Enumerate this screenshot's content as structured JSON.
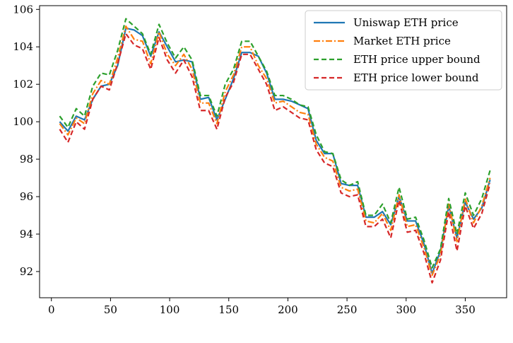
{
  "chart_data": {
    "type": "line",
    "title": "",
    "xlabel": "",
    "ylabel": "",
    "xlim": [
      -10,
      385
    ],
    "ylim": [
      90.6,
      106.2
    ],
    "xticks": [
      0,
      50,
      100,
      150,
      200,
      250,
      300,
      350
    ],
    "yticks": [
      92,
      94,
      96,
      98,
      100,
      102,
      104,
      106
    ],
    "grid": false,
    "legend_position": "top-right",
    "x": [
      7,
      14,
      21,
      28,
      35,
      42,
      49,
      56,
      63,
      70,
      77,
      84,
      91,
      98,
      105,
      112,
      119,
      126,
      133,
      140,
      147,
      154,
      161,
      168,
      175,
      182,
      189,
      196,
      203,
      210,
      217,
      224,
      231,
      238,
      245,
      252,
      259,
      266,
      273,
      280,
      287,
      294,
      301,
      308,
      315,
      322,
      329,
      336,
      343,
      350,
      357,
      364,
      371
    ],
    "series": [
      {
        "name": "Uniswap ETH price",
        "color": "#1f77b4",
        "dash": "solid",
        "values": [
          100.0,
          99.5,
          100.3,
          100.1,
          101.2,
          101.9,
          102.0,
          103.0,
          105.0,
          104.9,
          104.6,
          103.5,
          104.8,
          104.0,
          103.2,
          103.3,
          103.2,
          101.2,
          101.3,
          100.1,
          101.2,
          102.3,
          103.7,
          103.7,
          103.5,
          102.6,
          101.2,
          101.2,
          101.1,
          100.9,
          100.7,
          99.0,
          98.3,
          98.3,
          96.7,
          96.6,
          96.6,
          94.9,
          94.9,
          95.2,
          94.5,
          96.0,
          94.7,
          94.7,
          93.5,
          91.9,
          93.1,
          95.5,
          93.8,
          95.7,
          94.8,
          95.4,
          96.9
        ]
      },
      {
        "name": "Market ETH price",
        "color": "#ff7f0e",
        "dash": "dashdot",
        "values": [
          99.9,
          99.3,
          100.2,
          99.9,
          101.5,
          102.2,
          102.0,
          103.4,
          105.1,
          104.4,
          104.3,
          103.1,
          104.8,
          103.6,
          103.0,
          103.6,
          102.8,
          101.0,
          101.0,
          99.9,
          101.6,
          102.5,
          104.0,
          104.0,
          103.0,
          102.3,
          101.0,
          101.1,
          100.8,
          100.5,
          100.4,
          98.8,
          98.1,
          97.9,
          96.5,
          96.3,
          96.4,
          94.7,
          94.6,
          95.1,
          94.2,
          96.1,
          94.4,
          94.5,
          93.3,
          91.8,
          92.9,
          95.6,
          93.6,
          95.9,
          94.6,
          95.5,
          97.0
        ]
      },
      {
        "name": "ETH price upper bound",
        "color": "#2ca02c",
        "dash": "dashed",
        "values": [
          100.3,
          99.7,
          100.7,
          100.3,
          101.9,
          102.6,
          102.5,
          103.8,
          105.5,
          105.1,
          104.7,
          103.6,
          105.2,
          104.2,
          103.4,
          104.0,
          103.3,
          101.4,
          101.4,
          100.3,
          102.0,
          102.8,
          104.3,
          104.3,
          103.5,
          102.7,
          101.4,
          101.4,
          101.2,
          100.9,
          100.8,
          99.3,
          98.4,
          98.3,
          96.9,
          96.6,
          96.8,
          95.0,
          95.0,
          95.6,
          94.6,
          96.5,
          94.8,
          94.9,
          93.7,
          92.2,
          93.2,
          95.9,
          94.0,
          96.2,
          95.0,
          95.9,
          97.4
        ]
      },
      {
        "name": "ETH price lower bound",
        "color": "#d62728",
        "dash": "dashed",
        "values": [
          99.6,
          98.9,
          100.0,
          99.6,
          101.2,
          101.9,
          101.7,
          103.1,
          104.7,
          104.1,
          103.9,
          102.8,
          104.5,
          103.3,
          102.6,
          103.3,
          102.4,
          100.6,
          100.6,
          99.6,
          101.3,
          102.1,
          103.6,
          103.6,
          102.8,
          102.0,
          100.6,
          100.8,
          100.5,
          100.2,
          100.1,
          98.5,
          97.8,
          97.6,
          96.2,
          96.0,
          96.1,
          94.4,
          94.4,
          94.8,
          93.8,
          95.8,
          94.1,
          94.2,
          93.0,
          91.4,
          92.6,
          95.2,
          93.1,
          95.5,
          94.3,
          95.1,
          96.7
        ]
      }
    ]
  }
}
